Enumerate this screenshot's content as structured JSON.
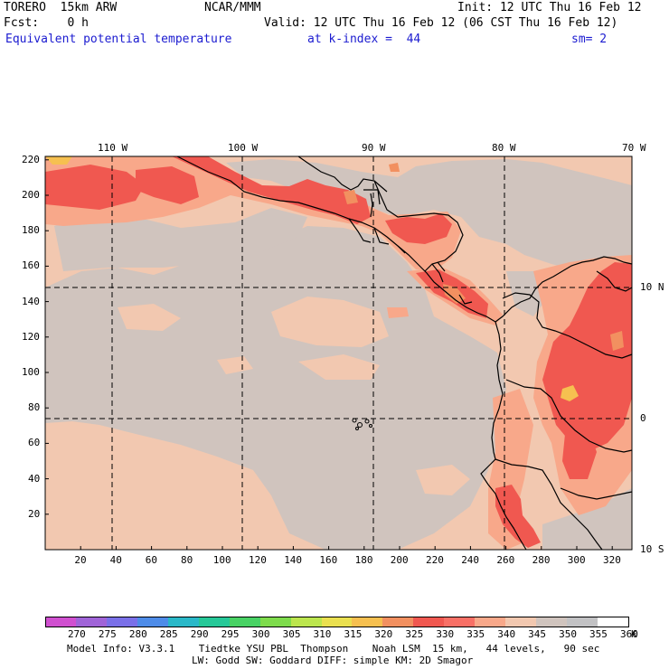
{
  "header": {
    "model": "TORERO  15km ARW",
    "org": "NCAR/MMM",
    "init": "Init: 12 UTC Thu 16 Feb 12",
    "fcst": "Fcst:    0 h",
    "valid": "Valid: 12 UTC Thu 16 Feb 12 (06 CST Thu 16 Feb 12)",
    "field": "Equivalent potential temperature",
    "level": "at k-index =  44",
    "smooth": "sm= 2"
  },
  "map": {
    "lon_labels": [
      "110 W",
      "100 W",
      "90 W",
      "80 W",
      "70 W"
    ],
    "lat_labels": [
      "10 N",
      "0",
      "10 S"
    ],
    "y_ticks": [
      "220",
      "200",
      "180",
      "160",
      "140",
      "120",
      "100",
      "80",
      "60",
      "40",
      "20"
    ],
    "x_ticks": [
      "20",
      "40",
      "60",
      "80",
      "100",
      "120",
      "140",
      "160",
      "180",
      "200",
      "220",
      "240",
      "260",
      "280",
      "300",
      "320"
    ],
    "field_levels_K": [
      340,
      335,
      330,
      345
    ]
  },
  "colorbar": {
    "levels": [
      "270",
      "275",
      "280",
      "285",
      "290",
      "295",
      "300",
      "305",
      "310",
      "315",
      "320",
      "325",
      "330",
      "335",
      "340",
      "345",
      "350",
      "355",
      "360"
    ],
    "unit": "K",
    "colors": [
      "#d050d0",
      "#a064d8",
      "#7a70e8",
      "#4e8ce8",
      "#2ab8c8",
      "#26c898",
      "#48d264",
      "#7edc4c",
      "#bce64e",
      "#eae050",
      "#f6c050",
      "#f29060",
      "#f05850",
      "#f87066",
      "#f8a88a",
      "#f2c8b0",
      "#d0c4be",
      "#c2c2c4",
      "#ffffff"
    ]
  },
  "footer": {
    "line1": "Model Info: V3.3.1    Tiedtke YSU PBL  Thompson    Noah LSM  15 km,   44 levels,   90 sec",
    "line2": "LW: Godd SW: Goddard DIFF: simple KM: 2D Smagor"
  }
}
